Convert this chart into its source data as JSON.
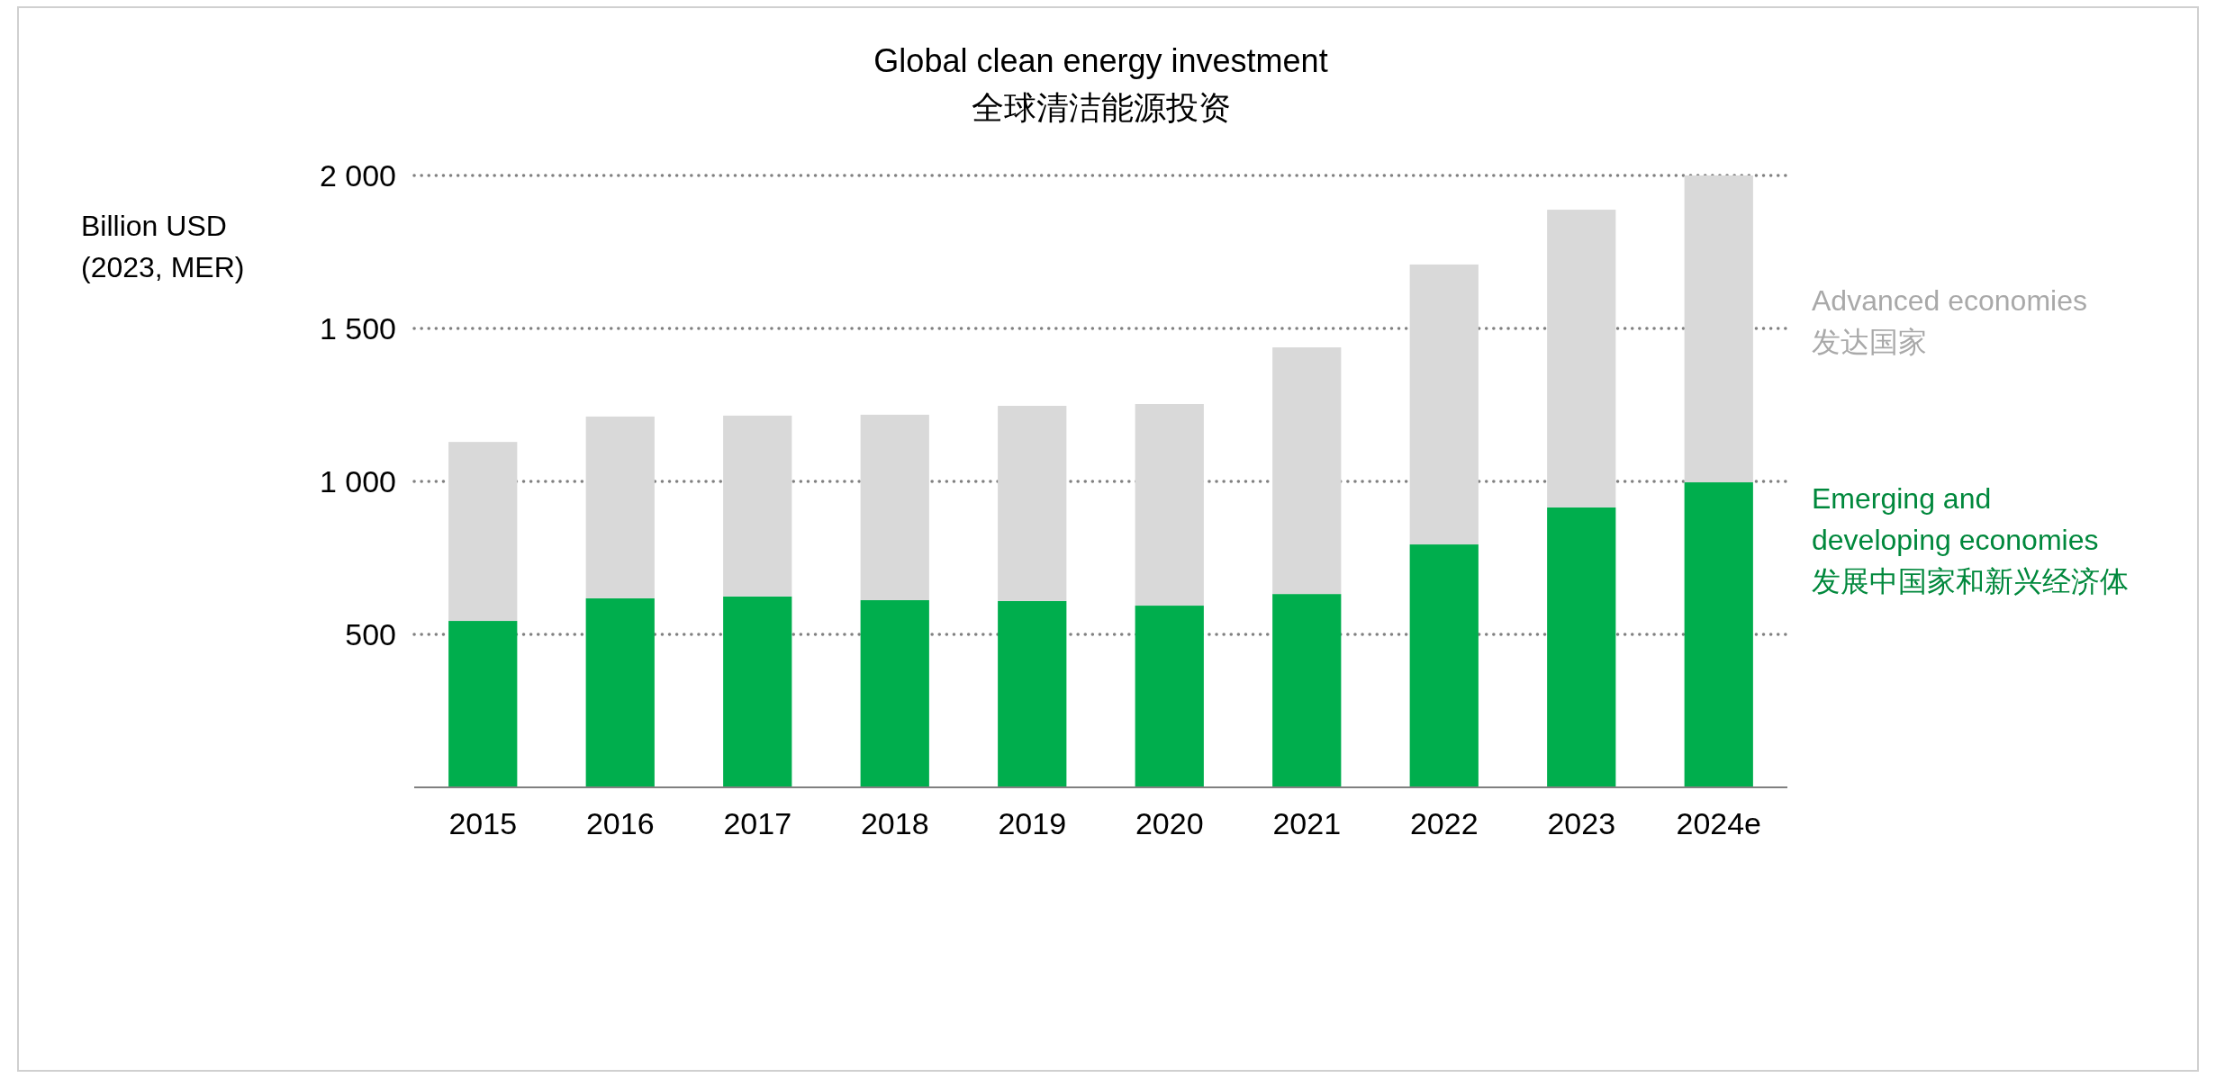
{
  "chart_data": {
    "type": "bar",
    "title": "Global clean energy investment",
    "subtitle": "全球清洁能源投资",
    "ylabel": "Billion USD\n(2023, MER)",
    "categories": [
      "2015",
      "2016",
      "2017",
      "2018",
      "2019",
      "2020",
      "2021",
      "2022",
      "2023",
      "2024e"
    ],
    "stacked": true,
    "series": [
      {
        "name": "Emerging and\ndeveloping economies\n发展中国家和新兴经济体",
        "color": "#00ae4d",
        "values": [
          544,
          618,
          624,
          612,
          609,
          594,
          632,
          794,
          915,
          997
        ]
      },
      {
        "name": "Advanced economies\n发达国家",
        "color": "#d9d9d9",
        "values": [
          585,
          594,
          591,
          606,
          638,
          659,
          806,
          915,
          973,
          1003
        ]
      }
    ],
    "ylim": [
      0,
      2000
    ],
    "yticks": [
      500,
      {
        "value": 1000,
        "label": "1 000"
      },
      {
        "value": 1500,
        "label": "1 500"
      },
      {
        "value": 2000,
        "label": "2 000"
      }
    ],
    "grid": "y",
    "legend": "right"
  }
}
